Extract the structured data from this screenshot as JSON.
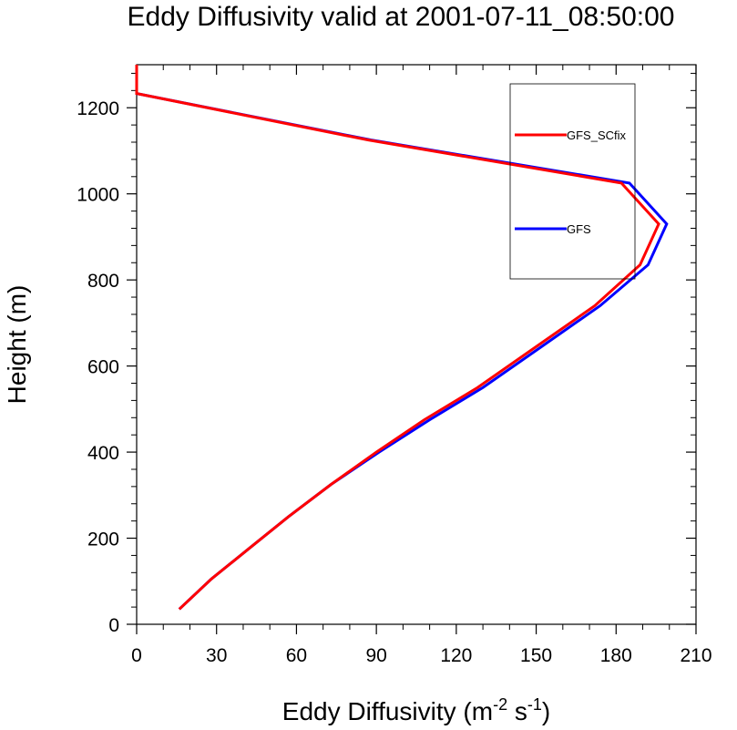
{
  "chart_data": {
    "type": "line",
    "title": "Eddy Diffusivity valid at 2001-07-11_08:50:00",
    "xlabel_main": "Eddy Diffusivity (m",
    "xlabel_sup1": "-2",
    "xlabel_mid": " s",
    "xlabel_sup2": "-1",
    "xlabel_end": ")",
    "ylabel": "Height (m)",
    "xlim": [
      0,
      210
    ],
    "ylim": [
      0,
      1300
    ],
    "xticks": [
      0,
      30,
      60,
      90,
      120,
      150,
      180,
      210
    ],
    "yticks": [
      0,
      200,
      400,
      600,
      800,
      1000,
      1200
    ],
    "grid": false,
    "legend_position": "upper-right-inside",
    "series": [
      {
        "name": "GFS_SCfix",
        "color": "#ff0000",
        "points": [
          [
            16,
            35
          ],
          [
            28,
            105
          ],
          [
            42,
            175
          ],
          [
            57,
            250
          ],
          [
            73,
            325
          ],
          [
            90,
            400
          ],
          [
            108,
            475
          ],
          [
            128,
            550
          ],
          [
            150,
            645
          ],
          [
            172,
            740
          ],
          [
            189,
            835
          ],
          [
            196,
            930
          ],
          [
            182,
            1025
          ],
          [
            87,
            1125
          ],
          [
            0,
            1233
          ],
          [
            0,
            1300
          ]
        ]
      },
      {
        "name": "GFS",
        "color": "#0000ff",
        "points": [
          [
            16,
            35
          ],
          [
            28,
            105
          ],
          [
            42,
            175
          ],
          [
            57,
            250
          ],
          [
            73,
            325
          ],
          [
            91,
            400
          ],
          [
            110,
            475
          ],
          [
            130,
            550
          ],
          [
            152,
            645
          ],
          [
            174,
            740
          ],
          [
            192,
            835
          ],
          [
            199,
            930
          ],
          [
            185,
            1025
          ],
          [
            88,
            1125
          ],
          [
            0,
            1233
          ],
          [
            0,
            1300
          ]
        ]
      }
    ]
  }
}
